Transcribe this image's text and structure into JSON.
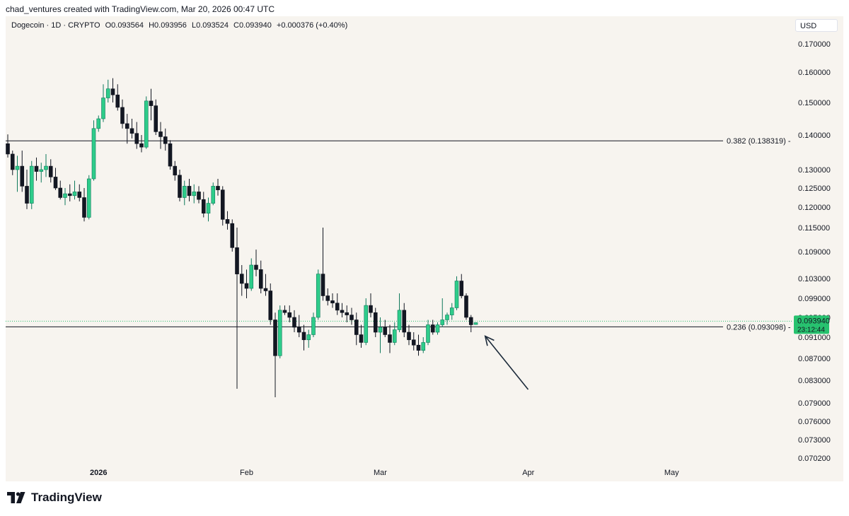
{
  "header": {
    "attribution": "chad_ventures created with TradingView.com, Mar 20, 2026 00:47 UTC"
  },
  "legend": {
    "symbol": "Dogecoin · 1D · CRYPTO",
    "open": "O0.093564",
    "high": "H0.093956",
    "low": "L0.093524",
    "close": "C0.093940",
    "change": "+0.000376 (+0.40%)"
  },
  "currency_button": "USD",
  "brand": {
    "name": "TradingView"
  },
  "colors": {
    "up": "#22ab94",
    "up_fill": "#2ecc8a",
    "down": "#131722",
    "background": "#f7f4ef",
    "price_badge": "#27c26f"
  },
  "chart_data": {
    "type": "candlestick",
    "symbol": "Dogecoin",
    "interval": "1D",
    "y_ticks": [
      0.17,
      0.16,
      0.15,
      0.14,
      0.13,
      0.125,
      0.12,
      0.115,
      0.109,
      0.103,
      0.099,
      0.095,
      0.091,
      0.087,
      0.083,
      0.079,
      0.076,
      0.073,
      0.0702
    ],
    "y_tick_labels": [
      "0.170000",
      "0.160000",
      "0.150000",
      "0.140000",
      "0.130000",
      "0.125000",
      "0.120000",
      "0.115000",
      "0.109000",
      "0.103000",
      "0.099000",
      "0.095000",
      "0.091000",
      "0.087000",
      "0.083000",
      "0.079000",
      "0.076000",
      "0.073000",
      "0.070200"
    ],
    "x_labels": [
      {
        "text": "2026",
        "day": 19
      },
      {
        "text": "Feb",
        "day": 50
      },
      {
        "text": "Mar",
        "day": 78
      },
      {
        "text": "Apr",
        "day": 109
      },
      {
        "text": "May",
        "day": 139
      }
    ],
    "horizontal_lines": [
      {
        "label": "0.382 (0.138319)",
        "value": 0.138319
      },
      {
        "label": "0.236 (0.093098)",
        "value": 0.093098
      }
    ],
    "last_price": {
      "value": 0.09394,
      "label": "0.093940",
      "countdown": "23:12:44"
    },
    "annotation": {
      "type": "arrow",
      "from": {
        "day": 106,
        "price": 0.0825
      },
      "to": {
        "day": 97,
        "price": 0.0925
      }
    },
    "candles": [
      {
        "day": 0,
        "o": 0.1375,
        "h": 0.1402,
        "l": 0.1335,
        "c": 0.1345
      },
      {
        "day": 1,
        "o": 0.1345,
        "h": 0.1355,
        "l": 0.1285,
        "c": 0.13
      },
      {
        "day": 2,
        "o": 0.13,
        "h": 0.134,
        "l": 0.124,
        "c": 0.131
      },
      {
        "day": 3,
        "o": 0.131,
        "h": 0.1355,
        "l": 0.124,
        "c": 0.1255
      },
      {
        "day": 4,
        "o": 0.1255,
        "h": 0.13,
        "l": 0.1195,
        "c": 0.121
      },
      {
        "day": 5,
        "o": 0.121,
        "h": 0.1325,
        "l": 0.1195,
        "c": 0.131
      },
      {
        "day": 6,
        "o": 0.131,
        "h": 0.1335,
        "l": 0.127,
        "c": 0.1295
      },
      {
        "day": 7,
        "o": 0.1295,
        "h": 0.132,
        "l": 0.1265,
        "c": 0.13
      },
      {
        "day": 8,
        "o": 0.13,
        "h": 0.1345,
        "l": 0.128,
        "c": 0.131
      },
      {
        "day": 9,
        "o": 0.131,
        "h": 0.133,
        "l": 0.1265,
        "c": 0.128
      },
      {
        "day": 10,
        "o": 0.128,
        "h": 0.1305,
        "l": 0.1245,
        "c": 0.125
      },
      {
        "day": 11,
        "o": 0.125,
        "h": 0.127,
        "l": 0.122,
        "c": 0.1225
      },
      {
        "day": 12,
        "o": 0.1225,
        "h": 0.125,
        "l": 0.1205,
        "c": 0.1235
      },
      {
        "day": 13,
        "o": 0.1235,
        "h": 0.126,
        "l": 0.1215,
        "c": 0.123
      },
      {
        "day": 14,
        "o": 0.123,
        "h": 0.127,
        "l": 0.122,
        "c": 0.124
      },
      {
        "day": 15,
        "o": 0.124,
        "h": 0.126,
        "l": 0.1215,
        "c": 0.1225
      },
      {
        "day": 16,
        "o": 0.1225,
        "h": 0.125,
        "l": 0.1165,
        "c": 0.1175
      },
      {
        "day": 17,
        "o": 0.1175,
        "h": 0.1285,
        "l": 0.117,
        "c": 0.1275
      },
      {
        "day": 18,
        "o": 0.1275,
        "h": 0.1445,
        "l": 0.127,
        "c": 0.142
      },
      {
        "day": 19,
        "o": 0.142,
        "h": 0.146,
        "l": 0.141,
        "c": 0.145
      },
      {
        "day": 20,
        "o": 0.145,
        "h": 0.156,
        "l": 0.144,
        "c": 0.1515
      },
      {
        "day": 21,
        "o": 0.1515,
        "h": 0.1575,
        "l": 0.15,
        "c": 0.1545
      },
      {
        "day": 22,
        "o": 0.1545,
        "h": 0.158,
        "l": 0.15,
        "c": 0.1525
      },
      {
        "day": 23,
        "o": 0.1525,
        "h": 0.156,
        "l": 0.1475,
        "c": 0.1485
      },
      {
        "day": 24,
        "o": 0.1485,
        "h": 0.151,
        "l": 0.142,
        "c": 0.1435
      },
      {
        "day": 25,
        "o": 0.1435,
        "h": 0.1465,
        "l": 0.1375,
        "c": 0.142
      },
      {
        "day": 26,
        "o": 0.142,
        "h": 0.145,
        "l": 0.139,
        "c": 0.1405
      },
      {
        "day": 27,
        "o": 0.1405,
        "h": 0.144,
        "l": 0.136,
        "c": 0.1375
      },
      {
        "day": 28,
        "o": 0.1375,
        "h": 0.14,
        "l": 0.135,
        "c": 0.1365
      },
      {
        "day": 29,
        "o": 0.1365,
        "h": 0.152,
        "l": 0.136,
        "c": 0.1505
      },
      {
        "day": 30,
        "o": 0.1505,
        "h": 0.1545,
        "l": 0.1445,
        "c": 0.149
      },
      {
        "day": 31,
        "o": 0.149,
        "h": 0.151,
        "l": 0.14,
        "c": 0.141
      },
      {
        "day": 32,
        "o": 0.141,
        "h": 0.144,
        "l": 0.136,
        "c": 0.1395
      },
      {
        "day": 33,
        "o": 0.1395,
        "h": 0.142,
        "l": 0.1355,
        "c": 0.1375
      },
      {
        "day": 34,
        "o": 0.1375,
        "h": 0.1385,
        "l": 0.13,
        "c": 0.131
      },
      {
        "day": 35,
        "o": 0.131,
        "h": 0.1325,
        "l": 0.127,
        "c": 0.1285
      },
      {
        "day": 36,
        "o": 0.1285,
        "h": 0.13,
        "l": 0.1215,
        "c": 0.1225
      },
      {
        "day": 37,
        "o": 0.1225,
        "h": 0.127,
        "l": 0.1205,
        "c": 0.1255
      },
      {
        "day": 38,
        "o": 0.1255,
        "h": 0.1275,
        "l": 0.1215,
        "c": 0.123
      },
      {
        "day": 39,
        "o": 0.123,
        "h": 0.126,
        "l": 0.121,
        "c": 0.124
      },
      {
        "day": 40,
        "o": 0.124,
        "h": 0.1255,
        "l": 0.121,
        "c": 0.122
      },
      {
        "day": 41,
        "o": 0.122,
        "h": 0.124,
        "l": 0.1175,
        "c": 0.1185
      },
      {
        "day": 42,
        "o": 0.1185,
        "h": 0.1225,
        "l": 0.1165,
        "c": 0.121
      },
      {
        "day": 43,
        "o": 0.121,
        "h": 0.1265,
        "l": 0.1205,
        "c": 0.1255
      },
      {
        "day": 44,
        "o": 0.1255,
        "h": 0.1275,
        "l": 0.123,
        "c": 0.1245
      },
      {
        "day": 45,
        "o": 0.1245,
        "h": 0.1255,
        "l": 0.1155,
        "c": 0.117
      },
      {
        "day": 46,
        "o": 0.117,
        "h": 0.119,
        "l": 0.1145,
        "c": 0.116
      },
      {
        "day": 47,
        "o": 0.116,
        "h": 0.117,
        "l": 0.109,
        "c": 0.11
      },
      {
        "day": 48,
        "o": 0.11,
        "h": 0.115,
        "l": 0.0815,
        "c": 0.104
      },
      {
        "day": 49,
        "o": 0.104,
        "h": 0.106,
        "l": 0.0995,
        "c": 0.102
      },
      {
        "day": 50,
        "o": 0.102,
        "h": 0.105,
        "l": 0.099,
        "c": 0.101
      },
      {
        "day": 51,
        "o": 0.101,
        "h": 0.1075,
        "l": 0.1005,
        "c": 0.106
      },
      {
        "day": 52,
        "o": 0.106,
        "h": 0.1095,
        "l": 0.1035,
        "c": 0.105
      },
      {
        "day": 53,
        "o": 0.105,
        "h": 0.107,
        "l": 0.1,
        "c": 0.101
      },
      {
        "day": 54,
        "o": 0.101,
        "h": 0.104,
        "l": 0.0995,
        "c": 0.1005
      },
      {
        "day": 55,
        "o": 0.1005,
        "h": 0.102,
        "l": 0.0935,
        "c": 0.0945
      },
      {
        "day": 56,
        "o": 0.0945,
        "h": 0.096,
        "l": 0.08,
        "c": 0.0875
      },
      {
        "day": 57,
        "o": 0.0875,
        "h": 0.0975,
        "l": 0.087,
        "c": 0.0965
      },
      {
        "day": 58,
        "o": 0.0965,
        "h": 0.0975,
        "l": 0.0955,
        "c": 0.096
      },
      {
        "day": 59,
        "o": 0.096,
        "h": 0.0975,
        "l": 0.094,
        "c": 0.095
      },
      {
        "day": 60,
        "o": 0.095,
        "h": 0.0965,
        "l": 0.092,
        "c": 0.093
      },
      {
        "day": 61,
        "o": 0.093,
        "h": 0.0955,
        "l": 0.091,
        "c": 0.092
      },
      {
        "day": 62,
        "o": 0.092,
        "h": 0.0935,
        "l": 0.0885,
        "c": 0.0905
      },
      {
        "day": 63,
        "o": 0.0905,
        "h": 0.0925,
        "l": 0.089,
        "c": 0.0915
      },
      {
        "day": 64,
        "o": 0.0915,
        "h": 0.096,
        "l": 0.091,
        "c": 0.095
      },
      {
        "day": 65,
        "o": 0.095,
        "h": 0.105,
        "l": 0.0945,
        "c": 0.104
      },
      {
        "day": 66,
        "o": 0.104,
        "h": 0.115,
        "l": 0.0985,
        "c": 0.0995
      },
      {
        "day": 67,
        "o": 0.0995,
        "h": 0.101,
        "l": 0.0975,
        "c": 0.0985
      },
      {
        "day": 68,
        "o": 0.0985,
        "h": 0.1,
        "l": 0.097,
        "c": 0.098
      },
      {
        "day": 69,
        "o": 0.098,
        "h": 0.1,
        "l": 0.0955,
        "c": 0.0965
      },
      {
        "day": 70,
        "o": 0.0965,
        "h": 0.098,
        "l": 0.095,
        "c": 0.096
      },
      {
        "day": 71,
        "o": 0.096,
        "h": 0.0975,
        "l": 0.094,
        "c": 0.0955
      },
      {
        "day": 72,
        "o": 0.0955,
        "h": 0.097,
        "l": 0.0935,
        "c": 0.0945
      },
      {
        "day": 73,
        "o": 0.0945,
        "h": 0.096,
        "l": 0.0895,
        "c": 0.0915
      },
      {
        "day": 74,
        "o": 0.0915,
        "h": 0.0935,
        "l": 0.089,
        "c": 0.09
      },
      {
        "day": 75,
        "o": 0.09,
        "h": 0.099,
        "l": 0.0895,
        "c": 0.0975
      },
      {
        "day": 76,
        "o": 0.0975,
        "h": 0.1,
        "l": 0.095,
        "c": 0.096
      },
      {
        "day": 77,
        "o": 0.096,
        "h": 0.097,
        "l": 0.091,
        "c": 0.092
      },
      {
        "day": 78,
        "o": 0.092,
        "h": 0.095,
        "l": 0.088,
        "c": 0.093
      },
      {
        "day": 79,
        "o": 0.093,
        "h": 0.0945,
        "l": 0.091,
        "c": 0.0915
      },
      {
        "day": 80,
        "o": 0.0915,
        "h": 0.0935,
        "l": 0.088,
        "c": 0.09
      },
      {
        "day": 81,
        "o": 0.09,
        "h": 0.094,
        "l": 0.0895,
        "c": 0.0925
      },
      {
        "day": 82,
        "o": 0.0925,
        "h": 0.1,
        "l": 0.092,
        "c": 0.0965
      },
      {
        "day": 83,
        "o": 0.0965,
        "h": 0.098,
        "l": 0.091,
        "c": 0.092
      },
      {
        "day": 84,
        "o": 0.092,
        "h": 0.0935,
        "l": 0.0895,
        "c": 0.0905
      },
      {
        "day": 85,
        "o": 0.0905,
        "h": 0.092,
        "l": 0.0885,
        "c": 0.0895
      },
      {
        "day": 86,
        "o": 0.0895,
        "h": 0.0915,
        "l": 0.0875,
        "c": 0.0885
      },
      {
        "day": 87,
        "o": 0.0885,
        "h": 0.091,
        "l": 0.088,
        "c": 0.09
      },
      {
        "day": 88,
        "o": 0.09,
        "h": 0.0945,
        "l": 0.0895,
        "c": 0.0935
      },
      {
        "day": 89,
        "o": 0.0935,
        "h": 0.0945,
        "l": 0.0915,
        "c": 0.092
      },
      {
        "day": 90,
        "o": 0.092,
        "h": 0.094,
        "l": 0.0915,
        "c": 0.0935
      },
      {
        "day": 91,
        "o": 0.0935,
        "h": 0.099,
        "l": 0.093,
        "c": 0.0945
      },
      {
        "day": 92,
        "o": 0.0945,
        "h": 0.096,
        "l": 0.0935,
        "c": 0.0955
      },
      {
        "day": 93,
        "o": 0.0955,
        "h": 0.098,
        "l": 0.0945,
        "c": 0.097
      },
      {
        "day": 94,
        "o": 0.097,
        "h": 0.1035,
        "l": 0.0965,
        "c": 0.1025
      },
      {
        "day": 95,
        "o": 0.1025,
        "h": 0.104,
        "l": 0.099,
        "c": 0.0995
      },
      {
        "day": 96,
        "o": 0.0995,
        "h": 0.1,
        "l": 0.0945,
        "c": 0.095
      },
      {
        "day": 97,
        "o": 0.095,
        "h": 0.0955,
        "l": 0.092,
        "c": 0.0935
      },
      {
        "day": 98,
        "o": 0.09356,
        "h": 0.09396,
        "l": 0.09352,
        "c": 0.09394
      }
    ]
  }
}
